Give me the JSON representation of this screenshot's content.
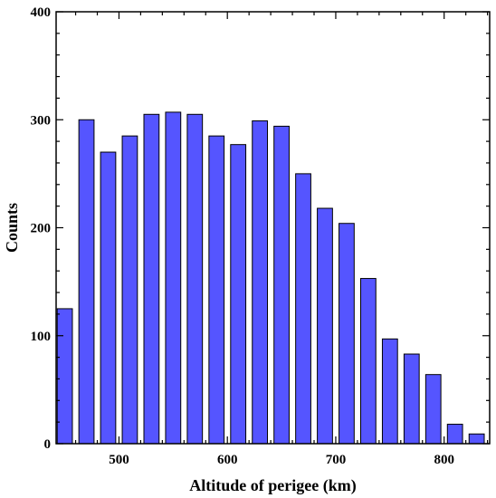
{
  "chart_data": {
    "type": "bar",
    "title": "",
    "xlabel": "Altitude of perigee (km)",
    "ylabel": "Counts",
    "x_centers": [
      450,
      470,
      490,
      510,
      530,
      550,
      570,
      590,
      610,
      630,
      650,
      670,
      690,
      710,
      730,
      750,
      770,
      790,
      810,
      830
    ],
    "values": [
      125,
      300,
      270,
      285,
      305,
      307,
      305,
      285,
      277,
      299,
      294,
      250,
      218,
      204,
      153,
      97,
      83,
      64,
      18,
      9
    ],
    "bin_width": 20,
    "bar_width": 14,
    "xlim": [
      442,
      842
    ],
    "ylim": [
      0,
      400
    ],
    "x_ticks": [
      500,
      600,
      700,
      800
    ],
    "y_ticks": [
      0,
      100,
      200,
      300,
      400
    ],
    "x_tick_labels": [
      "500",
      "600",
      "700",
      "800"
    ],
    "y_tick_labels": [
      "0",
      "100",
      "200",
      "300",
      "400"
    ],
    "grid": false,
    "bar_color": "#5555ff",
    "bar_edge_color": "#000000"
  }
}
